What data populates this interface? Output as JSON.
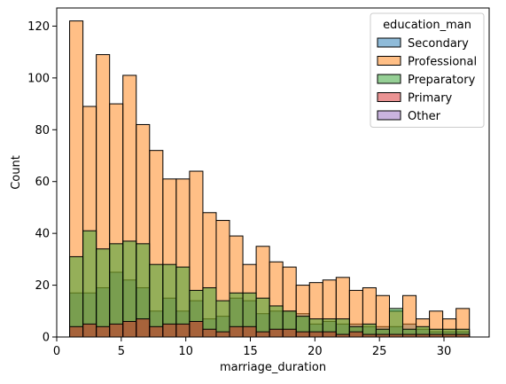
{
  "chart_data": {
    "type": "histogram",
    "xlabel": "marriage_duration",
    "ylabel": "Count",
    "xlim": [
      0,
      33.5
    ],
    "ylim": [
      0,
      127
    ],
    "xticks": [
      0,
      5,
      10,
      15,
      20,
      25,
      30
    ],
    "yticks": [
      0,
      20,
      40,
      60,
      80,
      100,
      120
    ],
    "bin_start": 1,
    "bin_width": 1.0323,
    "bin_count": 30,
    "legend": {
      "title": "education_man",
      "placement": "upper right"
    },
    "series": [
      {
        "name": "Secondary",
        "color": "#1f77b4",
        "values": [
          17,
          17,
          19,
          25,
          22,
          19,
          10,
          15,
          10,
          14,
          7,
          8,
          15,
          14,
          9,
          10,
          10,
          9,
          5,
          6,
          5,
          5,
          4,
          4,
          4,
          5,
          3,
          2,
          2,
          2
        ]
      },
      {
        "name": "Professional",
        "color": "#ff7f0e",
        "values": [
          122,
          89,
          109,
          90,
          101,
          82,
          72,
          61,
          61,
          64,
          48,
          45,
          39,
          28,
          35,
          29,
          27,
          20,
          21,
          22,
          23,
          18,
          19,
          16,
          10,
          16,
          7,
          10,
          7,
          11
        ]
      },
      {
        "name": "Preparatory",
        "color": "#2ca02c",
        "values": [
          31,
          41,
          34,
          36,
          37,
          36,
          28,
          28,
          27,
          18,
          19,
          14,
          17,
          17,
          15,
          12,
          10,
          8,
          7,
          7,
          7,
          4,
          5,
          3,
          11,
          3,
          4,
          3,
          3,
          3
        ]
      },
      {
        "name": "Primary",
        "color": "#d62728",
        "values": [
          4,
          5,
          4,
          5,
          6,
          7,
          4,
          5,
          5,
          6,
          3,
          2,
          4,
          4,
          2,
          3,
          3,
          2,
          2,
          2,
          1,
          2,
          1,
          1,
          1,
          1,
          1,
          1,
          1,
          1
        ]
      },
      {
        "name": "Other",
        "color": "#9467bd",
        "values": [
          0,
          0,
          0,
          0,
          0,
          0,
          0,
          0,
          0,
          0,
          0,
          0,
          0,
          0,
          0,
          0,
          0,
          0,
          0,
          0,
          0,
          0,
          0,
          0,
          0,
          0,
          0,
          0,
          0,
          0
        ]
      }
    ]
  }
}
